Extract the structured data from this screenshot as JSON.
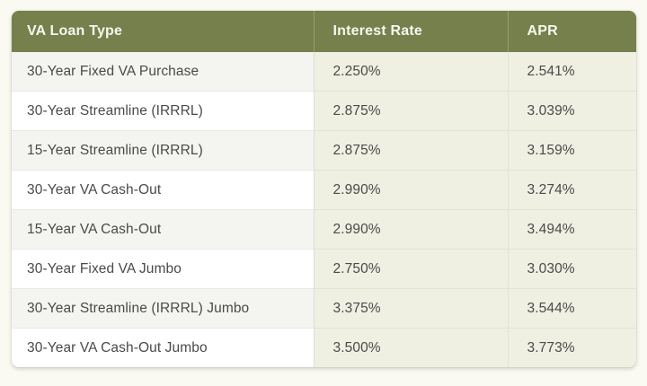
{
  "colors": {
    "page_bg": "#fbfaf2",
    "header_bg": "#75804d",
    "header_text": "#f7f6ee",
    "header_divider": "#97a06c",
    "row_bg": "#ffffff",
    "row_alt_bg": "#f4f4f1",
    "rate_cell_bg": "#eff0e2",
    "cell_text": "#4a4a48",
    "col_divider": "#dcdcd2",
    "rate_divider": "#dfe2d0",
    "row_divider_gray": "#e9e9e5",
    "row_divider_green": "#e2e4d4"
  },
  "chart_data": {
    "type": "table",
    "title": "",
    "columns": [
      "VA Loan Type",
      "Interest Rate",
      "APR"
    ],
    "rows": [
      [
        "30-Year Fixed VA Purchase",
        "2.250%",
        "2.541%"
      ],
      [
        "30-Year Streamline (IRRRL)",
        "2.875%",
        "3.039%"
      ],
      [
        "15-Year Streamline (IRRRL)",
        "2.875%",
        "3.159%"
      ],
      [
        "30-Year VA Cash-Out",
        "2.990%",
        "3.274%"
      ],
      [
        "15-Year VA Cash-Out",
        "2.990%",
        "3.494%"
      ],
      [
        "30-Year Fixed VA Jumbo",
        "2.750%",
        "3.030%"
      ],
      [
        "30-Year Streamline (IRRRL) Jumbo",
        "3.375%",
        "3.544%"
      ],
      [
        "30-Year VA Cash-Out Jumbo",
        "3.500%",
        "3.773%"
      ]
    ],
    "layout": {
      "header_position": "top",
      "grid": true,
      "first_column_alternating_rows": true,
      "rate_columns_tinted": true
    }
  }
}
